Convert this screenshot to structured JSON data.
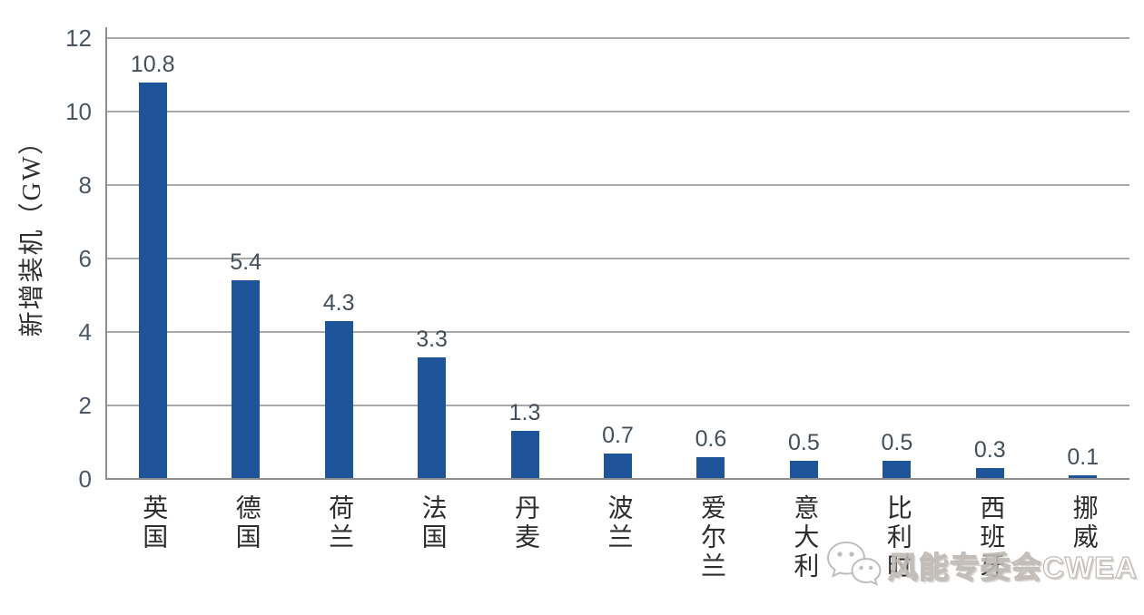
{
  "chart_data": {
    "type": "bar",
    "title": "",
    "xlabel": "",
    "ylabel": "新增装机（GW）",
    "categories": [
      "英国",
      "德国",
      "荷兰",
      "法国",
      "丹麦",
      "波兰",
      "爱尔兰",
      "意大利",
      "比利时",
      "西班牙",
      "挪威"
    ],
    "values": [
      10.8,
      5.4,
      4.3,
      3.3,
      1.3,
      0.7,
      0.6,
      0.5,
      0.5,
      0.3,
      0.1
    ],
    "value_labels": [
      "10.8",
      "5.4",
      "4.3",
      "3.3",
      "1.3",
      "0.7",
      "0.6",
      "0.5",
      "0.5",
      "0.3",
      "0.1"
    ],
    "yticks": [
      0,
      2,
      4,
      6,
      8,
      10,
      12
    ],
    "ylim": [
      0,
      12
    ],
    "grid": true,
    "legend": "none",
    "bar_color": "#1e5499",
    "gridline_color": "#a9a9a9",
    "axis_color": "#8e8e8e",
    "tick_label_color": "#4b5766",
    "value_label_color": "#454f59",
    "category_label_color": "#2d2d2d"
  },
  "watermark": {
    "icon": "wechat-icon",
    "text": "风能专委会CWEA"
  }
}
